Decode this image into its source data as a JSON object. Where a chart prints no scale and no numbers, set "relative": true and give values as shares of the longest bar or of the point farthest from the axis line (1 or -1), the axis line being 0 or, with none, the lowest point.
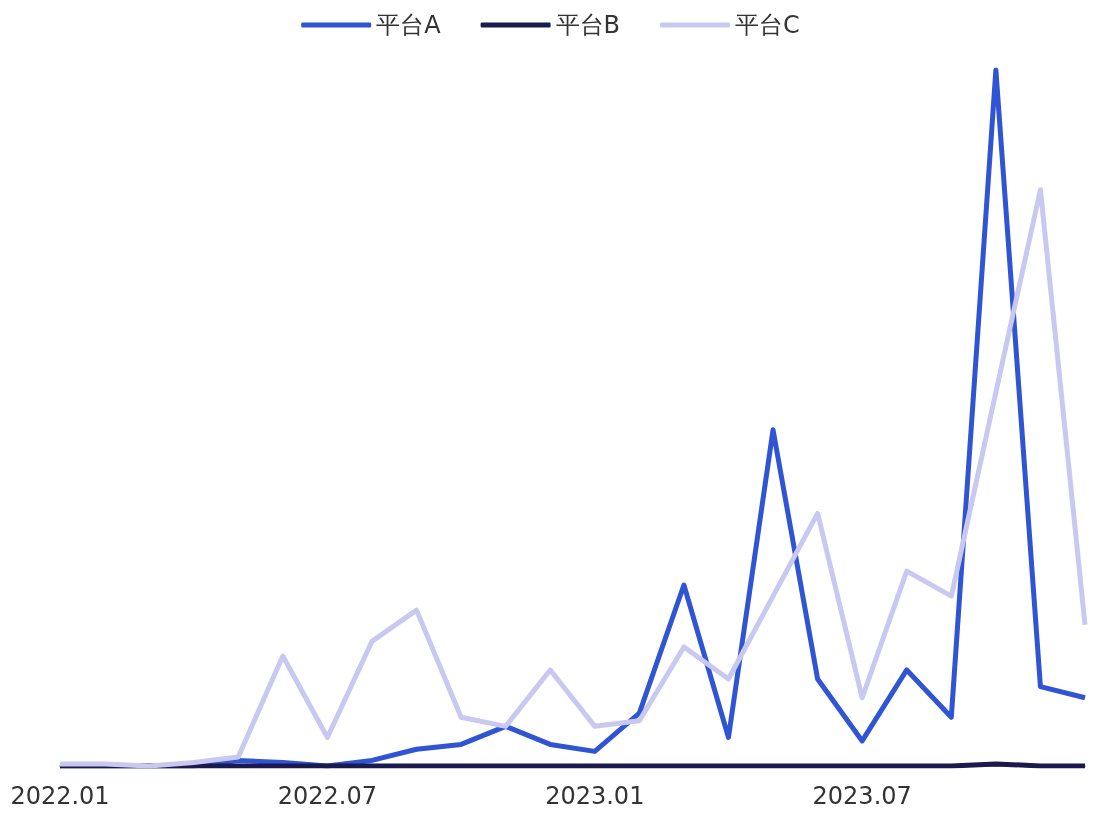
{
  "chart_data": {
    "type": "line",
    "relative": true,
    "legend": "top",
    "marker": "none",
    "grid": false,
    "categories": [
      "2022.01",
      null,
      null,
      null,
      null,
      null,
      "2022.07",
      null,
      null,
      null,
      null,
      null,
      "2023.01",
      null,
      null,
      null,
      null,
      null,
      "2023.07",
      null,
      null,
      null,
      null,
      null
    ],
    "series": [
      {
        "name": "平台A",
        "color": "#2f55d4",
        "values": [
          0,
          0,
          0,
          0,
          0.008,
          0.005,
          0,
          0.008,
          0.024,
          0.031,
          0.057,
          0.031,
          0.021,
          0.076,
          0.26,
          0.041,
          0.483,
          0.125,
          0.036,
          0.138,
          0.07,
          1,
          0.114,
          0.098
        ]
      },
      {
        "name": "平台B",
        "color": "#1a1a4e",
        "values": [
          0,
          0,
          0,
          0,
          0,
          0,
          0,
          0,
          0,
          0,
          0,
          0,
          0,
          0,
          0,
          0,
          0,
          0,
          0,
          0,
          0,
          0.003,
          0,
          0
        ]
      },
      {
        "name": "平台C",
        "color": "#c9c8f0",
        "values": [
          0.003,
          0.003,
          0,
          0.005,
          0.013,
          0.158,
          0.041,
          0.179,
          0.224,
          0.07,
          0.057,
          0.138,
          0.057,
          0.065,
          0.171,
          0.125,
          0.244,
          0.363,
          0.098,
          0.28,
          0.244,
          0.537,
          0.828,
          0.203
        ]
      }
    ]
  }
}
